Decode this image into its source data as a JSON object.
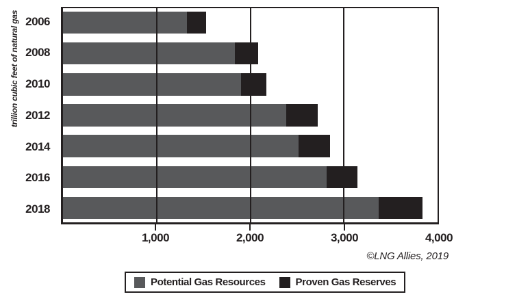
{
  "page": {
    "background": "#ffffff"
  },
  "chart": {
    "y_axis_title": "trillion cubic feet of natural gas",
    "attribution": "©LNG Allies, 2019",
    "colors": {
      "potential": "#58595b",
      "proven": "#231f20",
      "axis": "#231f20",
      "plot_background": "#ffffff"
    }
  },
  "legend": {
    "items": [
      {
        "label": "Potential Gas Resources",
        "color": "#58595b"
      },
      {
        "label": "Proven Gas Reserves",
        "color": "#231f20"
      }
    ]
  },
  "chart_data": {
    "type": "bar",
    "orientation": "horizontal",
    "stacked": true,
    "title": "",
    "xlabel": "",
    "ylabel": "trillion cubic feet of natural gas",
    "categories": [
      "2006",
      "2008",
      "2010",
      "2012",
      "2014",
      "2016",
      "2018"
    ],
    "series": [
      {
        "name": "Potential Gas Resources",
        "color": "#58595b",
        "values": [
          1321,
          1836,
          1898,
          2384,
          2515,
          2817,
          3374
        ]
      },
      {
        "name": "Proven Gas Reserves",
        "color": "#231f20",
        "values": [
          211,
          245,
          273,
          334,
          338,
          324,
          464
        ]
      }
    ],
    "stacked_totals": [
      1532,
      2081,
      2171,
      2718,
      2853,
      3141,
      3838
    ],
    "xlim": [
      0,
      4000
    ],
    "x_ticks": [
      {
        "value": 1000,
        "label": "1,000"
      },
      {
        "value": 2000,
        "label": "2,000"
      },
      {
        "value": 3000,
        "label": "3,000"
      },
      {
        "value": 4000,
        "label": "4,000"
      }
    ],
    "gridline_values": [
      1000,
      2000,
      3000
    ],
    "grid": true,
    "legend_position": "bottom"
  }
}
